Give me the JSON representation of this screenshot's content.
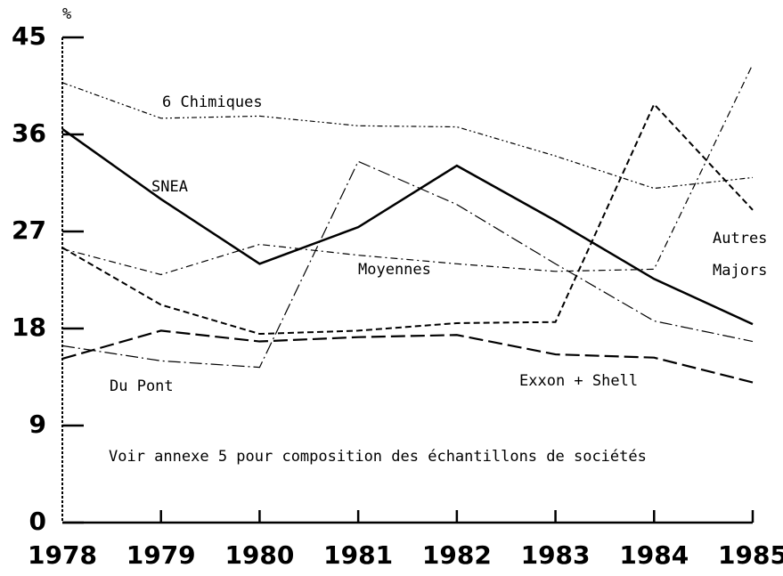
{
  "chart_data": {
    "type": "line",
    "y_label": "%",
    "annotation": "Voir annexe 5 pour composition des échantillons de sociétés",
    "categories": [
      "1978",
      "1979",
      "1980",
      "1981",
      "1982",
      "1983",
      "1984",
      "1985"
    ],
    "ylim": [
      0,
      45
    ],
    "yticks": [
      0,
      9,
      18,
      27,
      36,
      45
    ],
    "series": [
      {
        "name": "6 Chimiques",
        "color": "#000000",
        "values": [
          40.8,
          37.5,
          37.7,
          36.8,
          36.7,
          34,
          31,
          32
        ]
      },
      {
        "name": "SNEA",
        "color": "#000000",
        "values": [
          36.5,
          30,
          24,
          27.4,
          33.1,
          28,
          22.6,
          18.4
        ]
      },
      {
        "name": "Moyennes",
        "color": "#000000",
        "values": [
          25.4,
          23,
          25.8,
          24.8,
          24,
          23.3,
          23.5,
          42.5
        ]
      },
      {
        "name": "Autres Majors",
        "color": "#000000",
        "values": [
          16.4,
          15,
          14.4,
          33.5,
          29.5,
          24,
          18.7,
          16.8
        ]
      },
      {
        "name": "Du Pont",
        "color": "#000000",
        "values": [
          25.5,
          20.2,
          17.5,
          17.8,
          18.5,
          18.6,
          38.8,
          29
        ]
      },
      {
        "name": "Exxon + Shell",
        "color": "#000000",
        "values": [
          15.2,
          17.8,
          16.8,
          17.2,
          17.4,
          15.6,
          15.3,
          13
        ]
      }
    ]
  }
}
